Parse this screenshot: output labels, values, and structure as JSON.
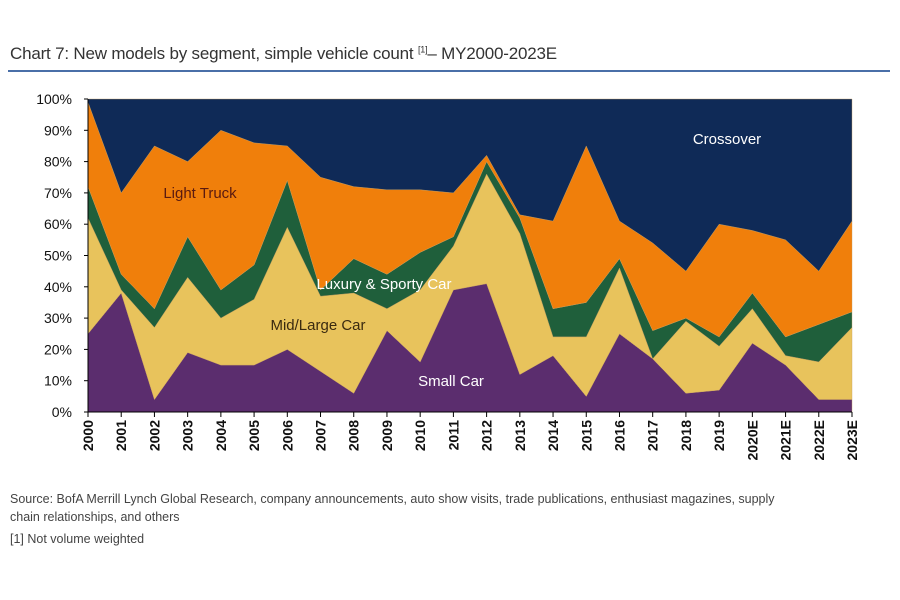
{
  "title": "Chart 7: New models by segment, simple vehicle count",
  "title_note": "[1]",
  "title_suffix": "– MY2000-2023E",
  "chart_data": {
    "type": "area",
    "stacked": true,
    "normalized": true,
    "categories": [
      "2000",
      "2001",
      "2002",
      "2003",
      "2004",
      "2005",
      "2006",
      "2007",
      "2008",
      "2009",
      "2010",
      "2011",
      "2012",
      "2013",
      "2014",
      "2015",
      "2016",
      "2017",
      "2018",
      "2019",
      "2020E",
      "2021E",
      "2022E",
      "2023E"
    ],
    "ylim": [
      0,
      100
    ],
    "yticks": [
      "0%",
      "10%",
      "20%",
      "30%",
      "40%",
      "50%",
      "60%",
      "70%",
      "80%",
      "90%",
      "100%"
    ],
    "grid": false,
    "legend": "inline labels",
    "series": [
      {
        "name": "Small Car",
        "color": "#5b2d6e",
        "label_color": "#ffffff",
        "values": [
          25,
          38,
          4,
          19,
          15,
          15,
          20,
          13,
          6,
          26,
          16,
          39,
          41,
          12,
          18,
          5,
          25,
          17,
          6,
          7,
          22,
          15,
          4,
          4
        ]
      },
      {
        "name": "Mid/Large Car",
        "color": "#e8c35c",
        "label_color": "#3a2a10",
        "values": [
          37,
          1,
          23,
          24,
          15,
          21,
          39,
          24,
          32,
          7,
          23,
          14,
          35,
          45,
          6,
          19,
          21,
          0,
          23,
          14,
          11,
          3,
          12,
          23
        ]
      },
      {
        "name": "Luxury & Sporty Car",
        "color": "#1f5f3b",
        "label_color": "#ffffff",
        "values": [
          10,
          5,
          6,
          13,
          9,
          11,
          15,
          2,
          11,
          11,
          12,
          3,
          4,
          5,
          9,
          11,
          3,
          9,
          1,
          3,
          5,
          6,
          12,
          5
        ]
      },
      {
        "name": "Light Truck",
        "color": "#f07f0b",
        "label_color": "#5a1a10",
        "values": [
          27,
          26,
          52,
          24,
          51,
          39,
          11,
          36,
          23,
          27,
          20,
          14,
          2,
          1,
          28,
          50,
          12,
          28,
          15,
          36,
          20,
          31,
          17,
          29
        ]
      },
      {
        "name": "Crossover",
        "color": "#0f2a57",
        "label_color": "#ffffff",
        "values": [
          1,
          30,
          15,
          20,
          10,
          14,
          15,
          25,
          28,
          29,
          29,
          30,
          18,
          37,
          39,
          15,
          39,
          46,
          55,
          40,
          42,
          45,
          55,
          39
        ]
      }
    ]
  },
  "source": "Source: BofA Merrill Lynch Global Research, company announcements, auto show visits, trade publications, enthusiast magazines, supply",
  "source_cont": "chain relationships, and others",
  "footnote": "[1] Not volume weighted"
}
